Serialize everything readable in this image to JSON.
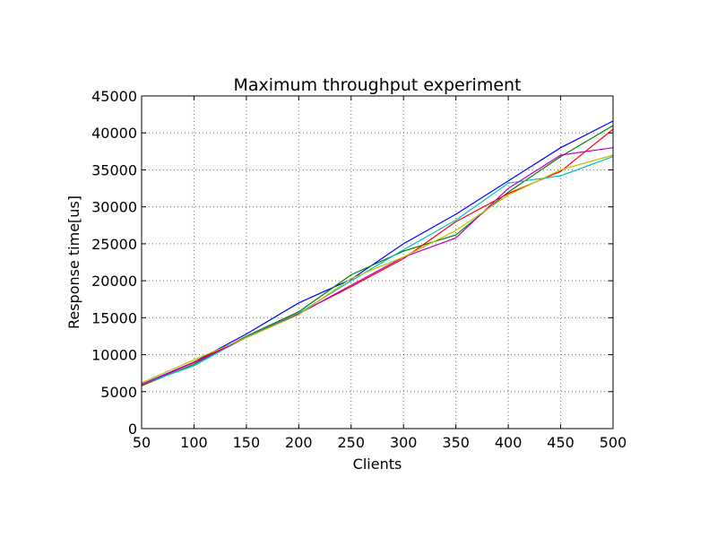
{
  "chart_data": {
    "type": "line",
    "title": "Maximum throughput experiment",
    "xlabel": "Clients",
    "ylabel": "Response time[us]",
    "xlim": [
      50,
      500
    ],
    "ylim": [
      0,
      45000
    ],
    "grid": true,
    "x": [
      50,
      100,
      150,
      200,
      250,
      300,
      350,
      400,
      450,
      500
    ],
    "xticks": [
      "50",
      "100",
      "150",
      "200",
      "250",
      "300",
      "350",
      "400",
      "450",
      "500"
    ],
    "yticks": [
      "0",
      "5000",
      "10000",
      "15000",
      "20000",
      "25000",
      "30000",
      "35000",
      "40000",
      "45000"
    ],
    "series": [
      {
        "color": "#0000ff",
        "values": [
          6000,
          9000,
          12800,
          17000,
          20200,
          25000,
          29000,
          33500,
          38000,
          41600
        ]
      },
      {
        "color": "#008000",
        "values": [
          5800,
          8700,
          12500,
          15800,
          20800,
          24000,
          26200,
          32000,
          36800,
          41000
        ]
      },
      {
        "color": "#ff0000",
        "values": [
          5800,
          9000,
          12400,
          15600,
          19200,
          23000,
          28000,
          31800,
          34800,
          40500
        ]
      },
      {
        "color": "#00bfbf",
        "values": [
          6000,
          8500,
          12400,
          15600,
          20000,
          24200,
          28200,
          33200,
          34200,
          36800
        ]
      },
      {
        "color": "#bf00bf",
        "values": [
          6000,
          8900,
          12300,
          15500,
          19400,
          23200,
          25800,
          32500,
          37000,
          38000
        ]
      },
      {
        "color": "#bfbf00",
        "values": [
          6200,
          9300,
          12300,
          15400,
          20300,
          23200,
          26800,
          31600,
          35000,
          37000
        ]
      }
    ]
  }
}
